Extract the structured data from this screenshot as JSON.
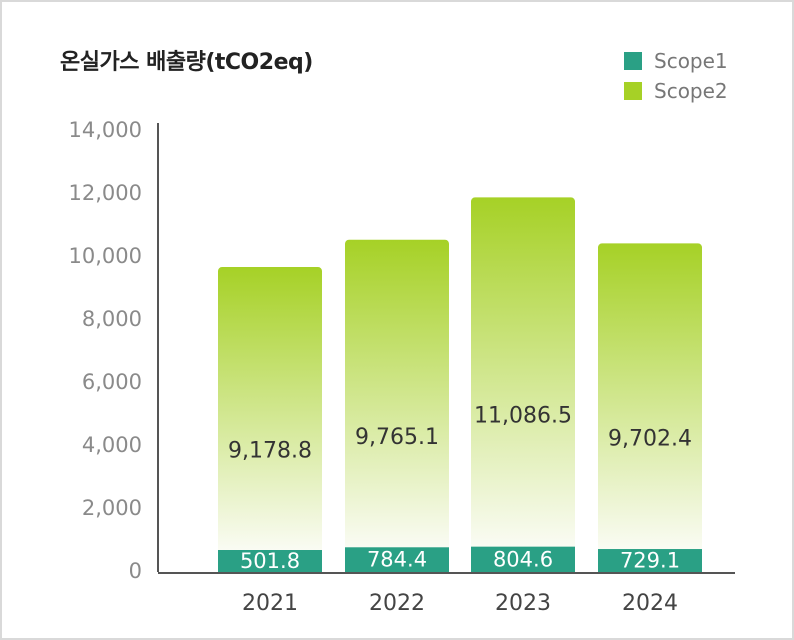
{
  "chart_data": {
    "type": "bar",
    "stacked": true,
    "title": "온실가스 배출량(tCO2eq)",
    "categories": [
      "2021",
      "2022",
      "2023",
      "2024"
    ],
    "series": [
      {
        "name": "Scope1",
        "values": [
          501.8,
          784.4,
          804.6,
          729.1
        ],
        "color": "#2aa085"
      },
      {
        "name": "Scope2",
        "values": [
          9178.8,
          9765.1,
          11086.5,
          9702.4
        ],
        "color": "#a6d126"
      }
    ],
    "value_labels": {
      "Scope1": [
        "501.8",
        "784.4",
        "804.6",
        "729.1"
      ],
      "Scope2": [
        "9,178.8",
        "9,765.1",
        "11,086.5",
        "9,702.4"
      ]
    },
    "y_ticks": [
      "0",
      "2,000",
      "4,000",
      "6,000",
      "8,000",
      "10,000",
      "12,000",
      "14,000"
    ],
    "ylim": [
      0,
      14000
    ],
    "legend_position": "top-right",
    "grid": false
  }
}
